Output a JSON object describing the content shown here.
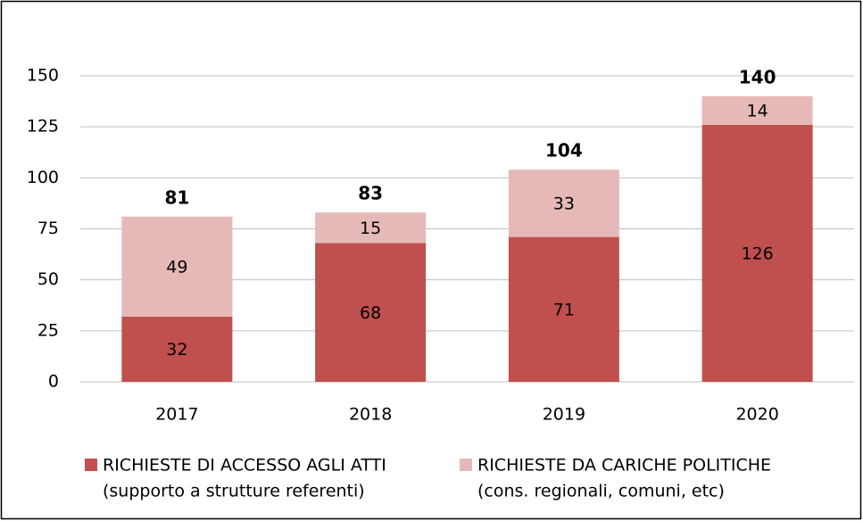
{
  "chart_data": {
    "type": "stacked_bar",
    "categories": [
      "2017",
      "2018",
      "2019",
      "2020"
    ],
    "series": [
      {
        "name": "RICHIESTE DI ACCESSO AGLI ATTI",
        "name_detail": "(supporto a strutture referenti)",
        "color": "#c0504d",
        "values": [
          32,
          68,
          71,
          126
        ]
      },
      {
        "name": "RICHIESTE DA CARICHE POLITICHE",
        "name_detail": "(cons. regionali, comuni, etc)",
        "color": "#e6b9b8",
        "values": [
          49,
          15,
          33,
          14
        ]
      }
    ],
    "totals": [
      81,
      83,
      104,
      140
    ],
    "ylim": [
      0,
      150
    ],
    "yticks": [
      0,
      25,
      50,
      75,
      100,
      125,
      150
    ],
    "grid": true,
    "legend": "bottom"
  }
}
